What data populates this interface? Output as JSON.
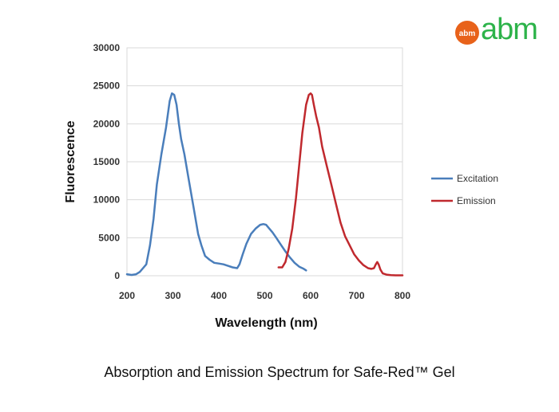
{
  "logo": {
    "text": "abm",
    "badge_text": "abm",
    "colors": {
      "badge": "#e8621a",
      "text": "#2db34a"
    }
  },
  "caption": "Absorption and Emission Spectrum for Safe-Red™ Gel",
  "chart_data": {
    "type": "line",
    "title": "",
    "xlabel": "Wavelength (nm)",
    "ylabel": "Fluorescence",
    "xlim": [
      200,
      800
    ],
    "ylim": [
      0,
      30000
    ],
    "x_ticks": [
      200,
      300,
      400,
      500,
      600,
      700,
      800
    ],
    "y_ticks": [
      0,
      5000,
      10000,
      15000,
      20000,
      25000,
      30000
    ],
    "grid": "horizontal",
    "legend": "right",
    "series": [
      {
        "name": "Excitation",
        "color": "#4a7ebb",
        "x": [
          200,
          210,
          220,
          228,
          235,
          242,
          250,
          258,
          265,
          275,
          285,
          293,
          298,
          303,
          308,
          313,
          318,
          325,
          335,
          345,
          355,
          362,
          370,
          380,
          390,
          400,
          410,
          420,
          430,
          440,
          445,
          452,
          460,
          470,
          480,
          490,
          497,
          503,
          510,
          517,
          525,
          535,
          545,
          555,
          565,
          575,
          585,
          590
        ],
        "y": [
          200,
          100,
          200,
          500,
          1000,
          1500,
          4000,
          7500,
          12000,
          16000,
          19500,
          23000,
          24000,
          23800,
          22500,
          20000,
          18000,
          16000,
          12500,
          9000,
          5500,
          4000,
          2600,
          2100,
          1700,
          1600,
          1500,
          1300,
          1100,
          1000,
          1500,
          2800,
          4200,
          5500,
          6200,
          6700,
          6800,
          6700,
          6200,
          5700,
          5000,
          4100,
          3200,
          2400,
          1700,
          1200,
          900,
          700
        ]
      },
      {
        "name": "Emission",
        "color": "#c0292e",
        "x": [
          530,
          538,
          545,
          552,
          560,
          568,
          575,
          582,
          590,
          596,
          600,
          603,
          607,
          612,
          618,
          625,
          635,
          645,
          655,
          665,
          675,
          685,
          695,
          705,
          715,
          725,
          732,
          738,
          742,
          745,
          748,
          752,
          757,
          765,
          775,
          785,
          800
        ],
        "y": [
          1100,
          1100,
          1800,
          3500,
          6200,
          10200,
          14500,
          18800,
          22500,
          23800,
          24000,
          23800,
          22500,
          21000,
          19500,
          17000,
          14500,
          12000,
          9500,
          7000,
          5200,
          4000,
          2800,
          2000,
          1400,
          1000,
          900,
          1000,
          1500,
          1800,
          1500,
          800,
          300,
          150,
          80,
          50,
          50
        ]
      }
    ]
  }
}
